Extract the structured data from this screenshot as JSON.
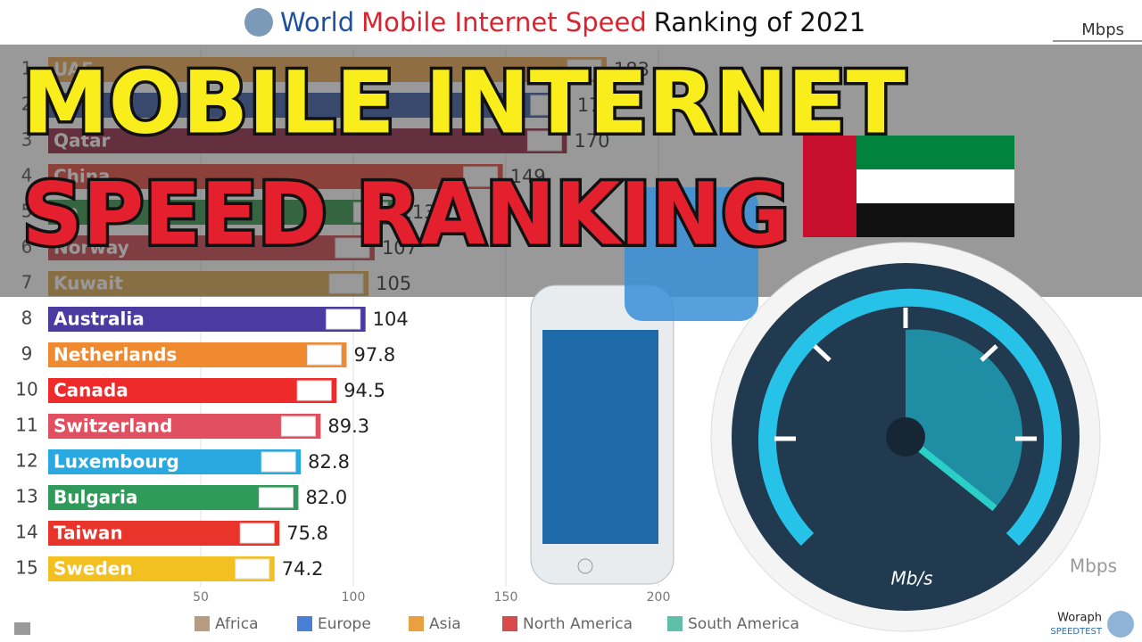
{
  "chart_data": {
    "type": "bar",
    "title_parts": [
      {
        "text": "World",
        "color": "#1f4fa0"
      },
      {
        "text": "Mobile Internet Speed",
        "color": "#d8242f"
      },
      {
        "text": "Ranking of 2021",
        "color": "#111111"
      }
    ],
    "unit": "Mbps",
    "ranks": [
      1,
      2,
      3,
      4,
      5,
      6,
      7,
      8,
      9,
      10,
      11,
      12,
      13,
      14,
      15
    ],
    "categories": [
      "UAE",
      null,
      "Qatar",
      "China",
      "Sa",
      "Norway",
      "Kuwait",
      "Australia",
      "Netherlands",
      "Canada",
      "Switzerland",
      "Luxembourg",
      "Bulgaria",
      "Taiwan",
      "Sweden"
    ],
    "values": [
      183,
      171,
      170,
      149,
      113,
      107,
      105,
      104,
      97.8,
      94.5,
      89.3,
      82.8,
      82.0,
      75.8,
      74.2
    ],
    "value_labels": [
      "183",
      "171",
      "170",
      "149",
      "113",
      "107",
      "105",
      "104",
      "97.8",
      "94.5",
      "89.3",
      "82.8",
      "82.0",
      "75.8",
      "74.2"
    ],
    "colors": [
      "#e8a040",
      "#2b4fa0",
      "#8a1538",
      "#e23b2e",
      "#1f8a3a",
      "#c8333f",
      "#d9a040",
      "#4b3aa0",
      "#f08a30",
      "#ee2a2a",
      "#e05060",
      "#2aa8e0",
      "#2f9a5a",
      "#e8342a",
      "#f2c020"
    ],
    "xlim": [
      0,
      200
    ],
    "xticks": [
      50,
      100,
      150,
      200
    ],
    "grid": true,
    "legend": [
      {
        "name": "Africa",
        "color": "#b59c82"
      },
      {
        "name": "Europe",
        "color": "#4a7fd6"
      },
      {
        "name": "Asia",
        "color": "#e8a040"
      },
      {
        "name": "North America",
        "color": "#d94a4a"
      },
      {
        "name": "South America",
        "color": "#5fbfa9"
      }
    ],
    "headline": [
      "MOBILE INTERNET",
      "SPEED RANKING"
    ],
    "gauge_label": "Mb/s",
    "unit_bottom": "Mbps",
    "brand": "Woraph",
    "brand_sub": "SPEEDTEST"
  }
}
